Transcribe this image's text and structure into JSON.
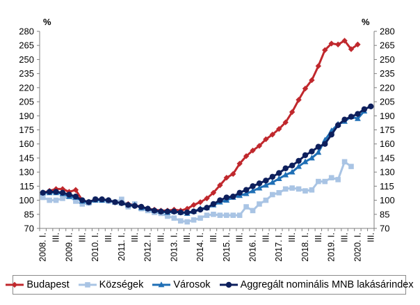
{
  "chart_data": {
    "type": "line",
    "unit_left": "%",
    "unit_right": "%",
    "ylim": [
      70,
      280
    ],
    "yticks": [
      70,
      85,
      100,
      115,
      130,
      145,
      160,
      175,
      190,
      205,
      220,
      235,
      250,
      265,
      280
    ],
    "xtick_labels": [
      "2008. I.",
      "III.",
      "2009. I.",
      "III.",
      "2010. I.",
      "III.",
      "2011. I.",
      "III.",
      "2012. I.",
      "III.",
      "2013. I.",
      "III.",
      "2014. I.",
      "III.",
      "2015. I.",
      "III.",
      "2016. I.",
      "III.",
      "2017. I.",
      "III.",
      "2018. I.",
      "III.",
      "2019. I.",
      "III.",
      "2020. I.",
      "III."
    ],
    "grid": false,
    "legend_position": "bottom",
    "series": [
      {
        "name": "Budapest",
        "color": "#c0282d",
        "marker": "diamond",
        "values": [
          108,
          110,
          112,
          112,
          109,
          111,
          100,
          98,
          101,
          101,
          100,
          98,
          98,
          96,
          95,
          93,
          91,
          90,
          89,
          89,
          90,
          89,
          91,
          95,
          98,
          102,
          108,
          116,
          124,
          128,
          139,
          147,
          153,
          158,
          165,
          170,
          176,
          183,
          194,
          207,
          219,
          228,
          243,
          260,
          267,
          266,
          270,
          261,
          266
        ]
      },
      {
        "name": "Községek",
        "color": "#a9c4e4",
        "marker": "square",
        "values": [
          103,
          100,
          100,
          102,
          104,
          99,
          96,
          97,
          101,
          100,
          99,
          98,
          101,
          93,
          96,
          91,
          89,
          87,
          86,
          83,
          81,
          78,
          77,
          79,
          81,
          84,
          85,
          84,
          84,
          84,
          84,
          93,
          89,
          96,
          100,
          106,
          108,
          112,
          113,
          112,
          110,
          111,
          120,
          120,
          124,
          122,
          141,
          136
        ]
      },
      {
        "name": "Városok",
        "color": "#1f6fb5",
        "marker": "triangle",
        "values": [
          108,
          108,
          108,
          107,
          104,
          103,
          99,
          98,
          100,
          100,
          100,
          98,
          97,
          95,
          95,
          92,
          91,
          89,
          88,
          87,
          88,
          87,
          86,
          88,
          91,
          92,
          95,
          98,
          100,
          103,
          105,
          107,
          110,
          113,
          116,
          119,
          123,
          127,
          130,
          136,
          141,
          145,
          151,
          164,
          174,
          181,
          184,
          189,
          187,
          195
        ]
      },
      {
        "name": "Aggregált nominális MNB lakásárindex",
        "color": "#0d1f5c",
        "marker": "circle",
        "values": [
          108,
          109,
          109,
          108,
          106,
          104,
          100,
          98,
          101,
          101,
          100,
          98,
          97,
          95,
          94,
          93,
          91,
          89,
          88,
          88,
          88,
          87,
          87,
          88,
          90,
          92,
          96,
          100,
          103,
          104,
          108,
          111,
          115,
          118,
          121,
          125,
          129,
          134,
          137,
          142,
          148,
          152,
          157,
          160,
          170,
          180,
          186,
          189,
          192,
          197,
          200
        ]
      }
    ]
  }
}
